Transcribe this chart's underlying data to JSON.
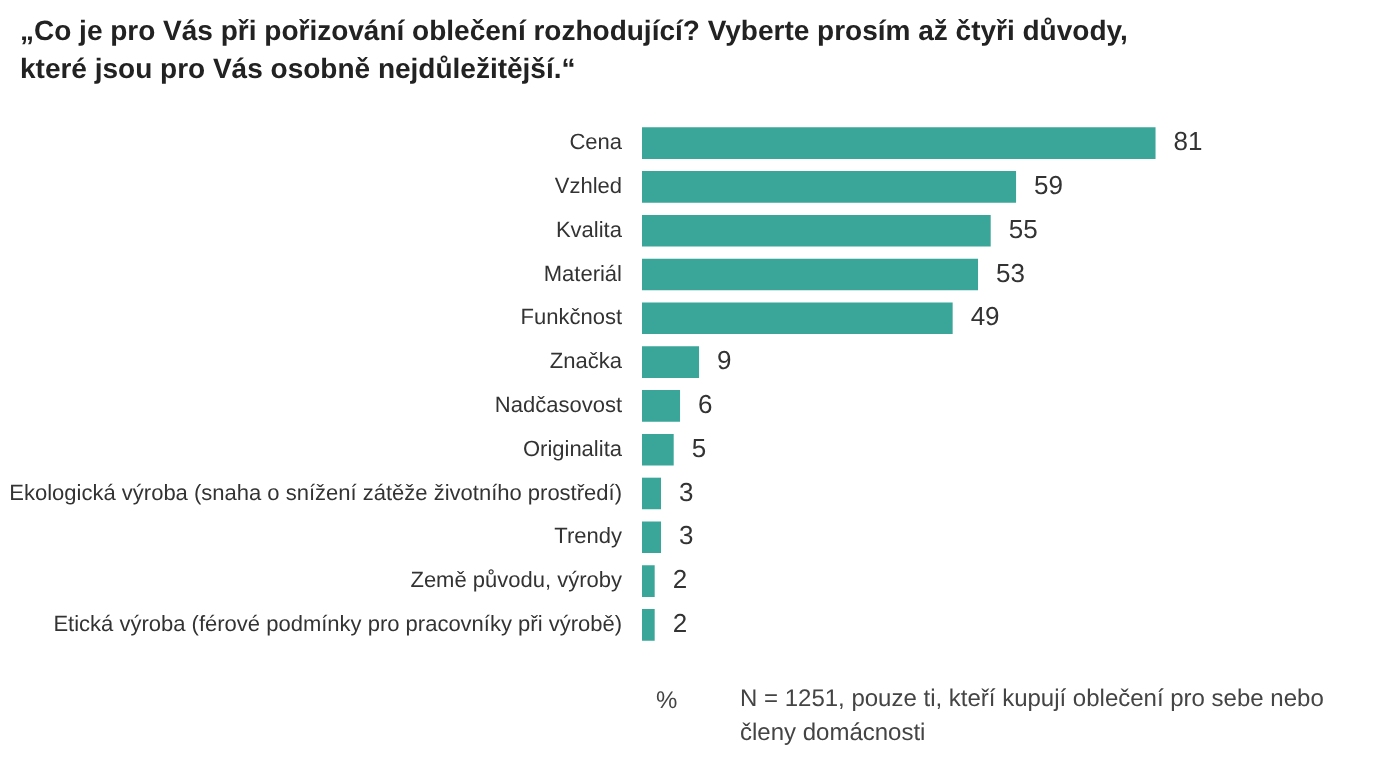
{
  "chart_data": {
    "type": "bar",
    "orientation": "horizontal",
    "title": "„Co je pro Vás při pořizování oblečení rozhodující? Vyberte prosím až čtyři důvody, které jsou pro Vás osobně nejdůležitější.“",
    "xlabel": "%",
    "categories": [
      "Cena",
      "Vzhled",
      "Kvalita",
      "Materiál",
      "Funkčnost",
      "Značka",
      "Nadčasovost",
      "Originalita",
      "Ekologická výroba (snaha o snížení zátěže životního prostředí)",
      "Trendy",
      "Země původu, výroby",
      "Etická výroba (férové podmínky pro pracovníky při výrobě)"
    ],
    "values": [
      81,
      59,
      55,
      53,
      49,
      9,
      6,
      5,
      3,
      3,
      2,
      2
    ],
    "color": "#3aa699",
    "data_labels": true,
    "grid": false,
    "legend": false,
    "annotations": [
      "N = 1251, pouze ti, kteří kupují oblečení pro sebe nebo členy domácnosti"
    ]
  }
}
